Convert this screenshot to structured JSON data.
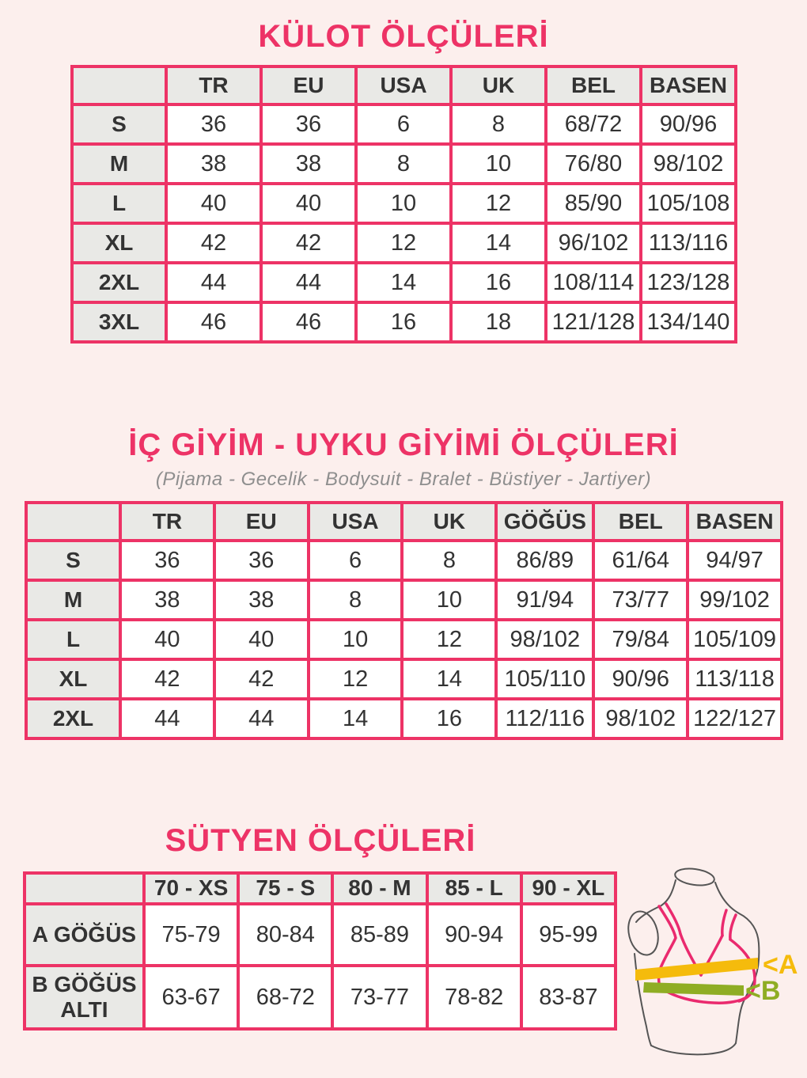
{
  "colors": {
    "accent_pink": "#ed3366",
    "page_background": "#fcefed",
    "header_cell_gray": "#e9e9e6",
    "band_a_yellow": "#f5bb0c",
    "band_b_green": "#8fad24",
    "bra_pink": "#ea2a6e"
  },
  "sections": {
    "kulot": {
      "title": "KÜLOT ÖLÇÜLERİ",
      "table": {
        "columns": [
          "TR",
          "EU",
          "USA",
          "UK",
          "BEL",
          "BASEN"
        ],
        "rows": [
          {
            "label": "S",
            "values": [
              "36",
              "36",
              "6",
              "8",
              "68/72",
              "90/96"
            ]
          },
          {
            "label": "M",
            "values": [
              "38",
              "38",
              "8",
              "10",
              "76/80",
              "98/102"
            ]
          },
          {
            "label": "L",
            "values": [
              "40",
              "40",
              "10",
              "12",
              "85/90",
              "105/108"
            ]
          },
          {
            "label": "XL",
            "values": [
              "42",
              "42",
              "12",
              "14",
              "96/102",
              "113/116"
            ]
          },
          {
            "label": "2XL",
            "values": [
              "44",
              "44",
              "14",
              "16",
              "108/114",
              "123/128"
            ]
          },
          {
            "label": "3XL",
            "values": [
              "46",
              "46",
              "16",
              "18",
              "121/128",
              "134/140"
            ]
          }
        ]
      }
    },
    "ic_giyim": {
      "title": "İÇ GİYİM - UYKU GİYİMİ ÖLÇÜLERİ",
      "subtitle": "(Pijama - Gecelik - Bodysuit - Bralet - Büstiyer - Jartiyer)",
      "table": {
        "columns": [
          "TR",
          "EU",
          "USA",
          "UK",
          "GÖĞÜS",
          "BEL",
          "BASEN"
        ],
        "rows": [
          {
            "label": "S",
            "values": [
              "36",
              "36",
              "6",
              "8",
              "86/89",
              "61/64",
              "94/97"
            ]
          },
          {
            "label": "M",
            "values": [
              "38",
              "38",
              "8",
              "10",
              "91/94",
              "73/77",
              "99/102"
            ]
          },
          {
            "label": "L",
            "values": [
              "40",
              "40",
              "10",
              "12",
              "98/102",
              "79/84",
              "105/109"
            ]
          },
          {
            "label": "XL",
            "values": [
              "42",
              "42",
              "12",
              "14",
              "105/110",
              "90/96",
              "113/118"
            ]
          },
          {
            "label": "2XL",
            "values": [
              "44",
              "44",
              "14",
              "16",
              "112/116",
              "98/102",
              "122/127"
            ]
          }
        ]
      }
    },
    "sutyen": {
      "title": "SÜTYEN ÖLÇÜLERİ",
      "table": {
        "columns": [
          "70 - XS",
          "75 - S",
          "80 - M",
          "85 - L",
          "90 - XL"
        ],
        "rows": [
          {
            "label": "A GÖĞÜS",
            "values": [
              "75-79",
              "80-84",
              "85-89",
              "90-94",
              "95-99"
            ]
          },
          {
            "label": "B GÖĞÜS ALTI",
            "values": [
              "63-67",
              "68-72",
              "73-77",
              "78-82",
              "83-87"
            ]
          }
        ]
      }
    }
  },
  "illustration": {
    "label_a": "<A",
    "label_b": "<B"
  }
}
